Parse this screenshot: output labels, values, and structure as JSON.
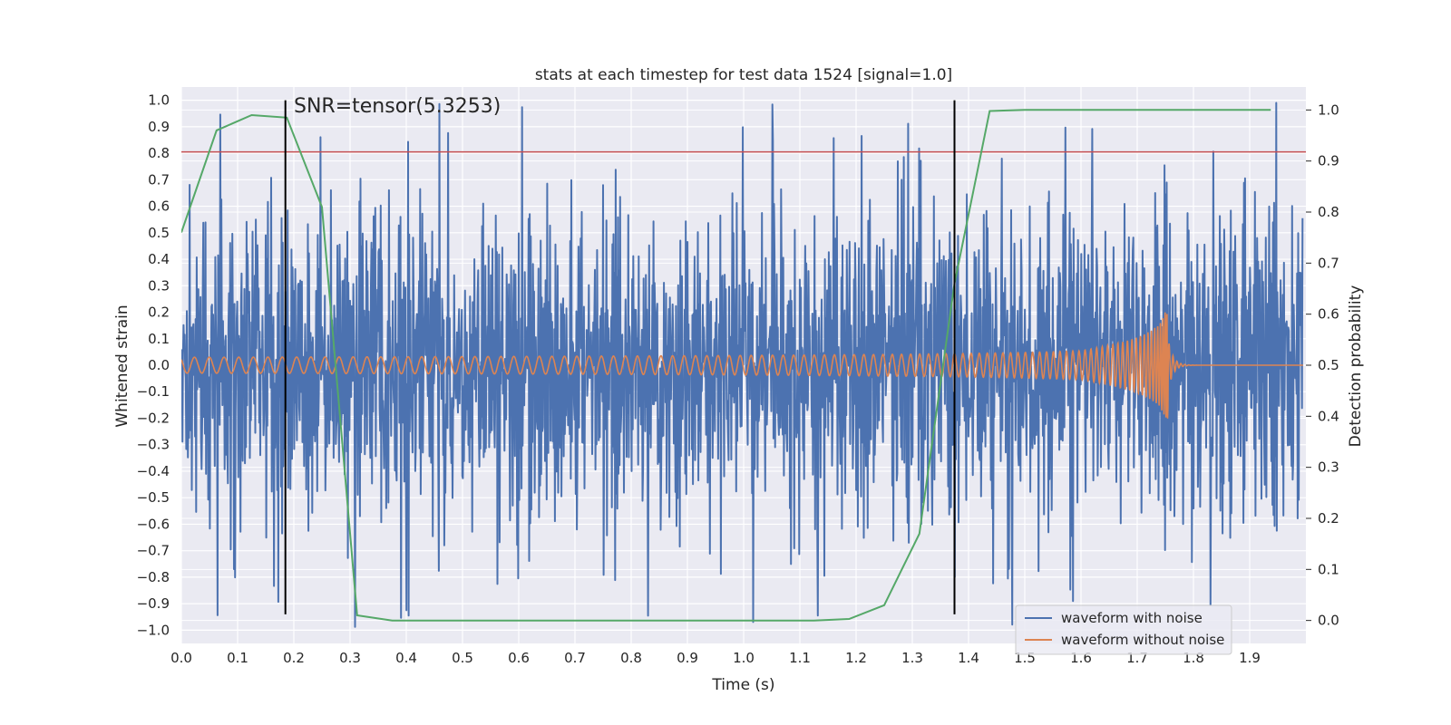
{
  "chart_data": {
    "type": "line",
    "title": "stats at each timestep for test data 1524 [signal=1.0]",
    "xlabel": "Time (s)",
    "ylabel": "Whitened strain",
    "y2label": "Detection probability",
    "xlim": [
      0.0,
      2.0
    ],
    "ylim": [
      -1.05,
      1.05
    ],
    "y2lim": [
      -0.045,
      1.045
    ],
    "xticks": [
      "0.0",
      "0.1",
      "0.2",
      "0.3",
      "0.4",
      "0.5",
      "0.6",
      "0.7",
      "0.8",
      "0.9",
      "1.0",
      "1.1",
      "1.2",
      "1.3",
      "1.4",
      "1.5",
      "1.6",
      "1.7",
      "1.8",
      "1.9"
    ],
    "yticks": [
      "1.0",
      "0.9",
      "0.8",
      "0.7",
      "0.6",
      "0.5",
      "0.4",
      "0.3",
      "0.2",
      "0.1",
      "0.0",
      "−0.1",
      "−0.2",
      "−0.3",
      "−0.4",
      "−0.5",
      "−0.6",
      "−0.7",
      "−0.8",
      "−0.9",
      "−1.0"
    ],
    "y2ticks": [
      "1.0",
      "0.9",
      "0.8",
      "0.7",
      "0.6",
      "0.5",
      "0.4",
      "0.3",
      "0.2",
      "0.1",
      "0.0"
    ],
    "annotation": "SNR=tensor(5.3253)",
    "threshold_y": 0.805,
    "vlines": [
      {
        "x": 0.185,
        "y_from": -0.94,
        "y_to": 1.0
      },
      {
        "x": 1.375,
        "y_from": -0.94,
        "y_to": 1.0
      }
    ],
    "series": [
      {
        "name": "waveform with noise",
        "color": "#4c72b0",
        "kind": "noise",
        "amplitude": 0.55,
        "seed": 1524
      },
      {
        "name": "waveform without noise",
        "color": "#dd8452",
        "kind": "chirp",
        "base_amplitude": 0.03,
        "peak_amplitude": 0.22,
        "merger_time": 1.755
      },
      {
        "name": "detection probability",
        "color": "#55a868",
        "axis": "right",
        "x": [
          0.0,
          0.0625,
          0.125,
          0.1875,
          0.25,
          0.3125,
          0.375,
          0.4375,
          0.5,
          0.5625,
          0.625,
          0.6875,
          0.75,
          0.8125,
          0.875,
          0.9375,
          1.0,
          1.0625,
          1.125,
          1.1875,
          1.25,
          1.3125,
          1.375,
          1.4375,
          1.5,
          1.5625,
          1.625,
          1.6875,
          1.75,
          1.8125,
          1.875,
          1.9375
        ],
        "values": [
          0.76,
          0.96,
          0.99,
          0.985,
          0.81,
          0.01,
          0.0,
          0.0,
          0.0,
          0.0,
          0.0,
          0.0,
          0.0,
          0.0,
          0.0,
          0.0,
          0.0,
          0.0,
          0.0,
          0.003,
          0.03,
          0.17,
          0.66,
          0.998,
          1.0,
          1.0,
          1.0,
          1.0,
          1.0,
          1.0,
          1.0,
          1.0
        ]
      }
    ],
    "threshold_color": "#c44e52",
    "legend": {
      "placement": "lower-right",
      "entries": [
        "waveform with noise",
        "waveform without noise"
      ]
    }
  }
}
